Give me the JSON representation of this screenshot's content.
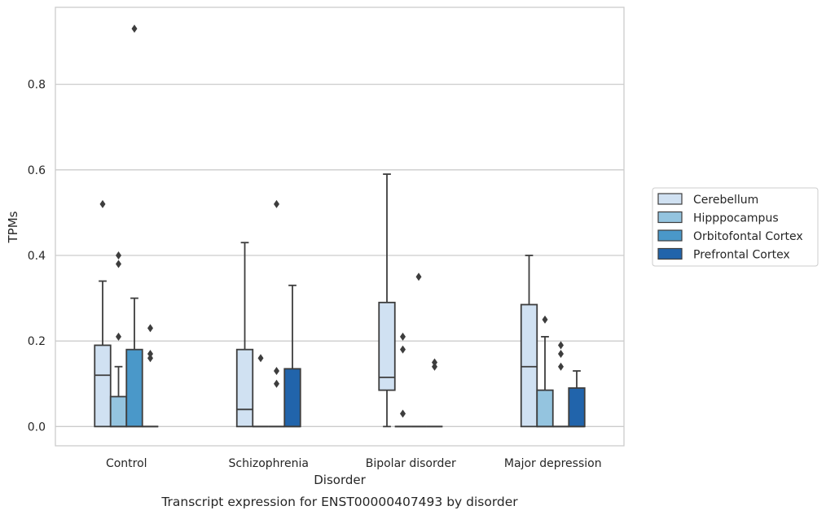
{
  "chart_data": {
    "type": "boxplot",
    "caption": "Transcript expression for ENST00000407493 by disorder",
    "xlabel": "Disorder",
    "ylabel": "TPMs",
    "ylim": [
      -0.045,
      0.98
    ],
    "yticks": [
      "0.0",
      "0.2",
      "0.4",
      "0.6",
      "0.8"
    ],
    "ytick_values": [
      0.0,
      0.2,
      0.4,
      0.6,
      0.8
    ],
    "grid": "horizontal",
    "legend_position": "center-right",
    "categories": [
      "Control",
      "Schizophrenia",
      "Bipolar disorder",
      "Major depression"
    ],
    "series": [
      {
        "name": "Cerebellum",
        "color": "#d0e1f2",
        "boxes": [
          {
            "q1": 0.0,
            "median": 0.12,
            "q3": 0.19,
            "whislo": 0.0,
            "whishi": 0.34,
            "fliers": [
              0.52
            ]
          },
          {
            "q1": 0.0,
            "median": 0.04,
            "q3": 0.18,
            "whislo": 0.0,
            "whishi": 0.43,
            "fliers": []
          },
          {
            "q1": 0.085,
            "median": 0.115,
            "q3": 0.29,
            "whislo": 0.0,
            "whishi": 0.59,
            "fliers": []
          },
          {
            "q1": 0.0,
            "median": 0.14,
            "q3": 0.285,
            "whislo": 0.0,
            "whishi": 0.4,
            "fliers": []
          }
        ]
      },
      {
        "name": "Hipppocampus",
        "color": "#94c4df",
        "boxes": [
          {
            "q1": 0.0,
            "median": 0.0,
            "q3": 0.07,
            "whislo": 0.0,
            "whishi": 0.14,
            "fliers": [
              0.21,
              0.38,
              0.4
            ]
          },
          {
            "q1": 0.0,
            "median": 0.0,
            "q3": 0.0,
            "whislo": 0.0,
            "whishi": 0.0,
            "fliers": [
              0.16
            ]
          },
          {
            "q1": 0.0,
            "median": 0.0,
            "q3": 0.0,
            "whislo": 0.0,
            "whishi": 0.0,
            "fliers": [
              0.03,
              0.18,
              0.21
            ]
          },
          {
            "q1": 0.0,
            "median": 0.0,
            "q3": 0.085,
            "whislo": 0.0,
            "whishi": 0.21,
            "fliers": [
              0.25
            ]
          }
        ]
      },
      {
        "name": "Orbitofontal Cortex",
        "color": "#4a98c9",
        "boxes": [
          {
            "q1": 0.0,
            "median": 0.0,
            "q3": 0.18,
            "whislo": 0.0,
            "whishi": 0.3,
            "fliers": [
              0.93
            ]
          },
          {
            "q1": 0.0,
            "median": 0.0,
            "q3": 0.0,
            "whislo": 0.0,
            "whishi": 0.0,
            "fliers": [
              0.1,
              0.13,
              0.52
            ]
          },
          {
            "q1": 0.0,
            "median": 0.0,
            "q3": 0.0,
            "whislo": 0.0,
            "whishi": 0.0,
            "fliers": [
              0.35
            ]
          },
          {
            "q1": 0.0,
            "median": 0.0,
            "q3": 0.0,
            "whislo": 0.0,
            "whishi": 0.0,
            "fliers": [
              0.14,
              0.17,
              0.19
            ]
          }
        ]
      },
      {
        "name": "Prefrontal Cortex",
        "color": "#2164ab",
        "boxes": [
          {
            "q1": 0.0,
            "median": 0.0,
            "q3": 0.0,
            "whislo": 0.0,
            "whishi": 0.0,
            "fliers": [
              0.16,
              0.17,
              0.23
            ]
          },
          {
            "q1": 0.0,
            "median": 0.0,
            "q3": 0.135,
            "whislo": 0.0,
            "whishi": 0.33,
            "fliers": []
          },
          {
            "q1": 0.0,
            "median": 0.0,
            "q3": 0.0,
            "whislo": 0.0,
            "whishi": 0.0,
            "fliers": [
              0.14,
              0.15
            ]
          },
          {
            "q1": 0.0,
            "median": 0.0,
            "q3": 0.09,
            "whislo": 0.0,
            "whishi": 0.13,
            "fliers": []
          }
        ]
      }
    ]
  }
}
